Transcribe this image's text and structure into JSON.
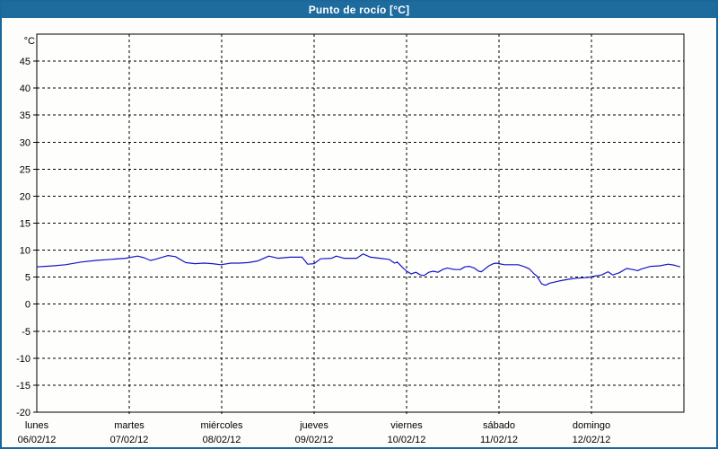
{
  "header": {
    "title": "Punto de rocío [°C]"
  },
  "colors": {
    "titlebar_bg": "#1e6b9e",
    "titlebar_text": "#ffffff",
    "window_border": "#1c679a",
    "line": "#1515c8",
    "grid": "#000000",
    "background": "#fdfdfb",
    "plot_background": "#fefefc"
  },
  "chart_data": {
    "type": "line",
    "title": "Punto de rocío [°C]",
    "ylabel": "°C",
    "ylim": [
      -20,
      50
    ],
    "xlim_days": [
      0,
      7
    ],
    "yticks": [
      45,
      40,
      35,
      30,
      25,
      20,
      15,
      10,
      5,
      0,
      -5,
      -10,
      -15,
      -20
    ],
    "grid": "dashed-both-axes",
    "legend": "none",
    "x_days": [
      {
        "name": "lunes",
        "date": "06/02/12"
      },
      {
        "name": "martes",
        "date": "07/02/12"
      },
      {
        "name": "miércoles",
        "date": "08/02/12"
      },
      {
        "name": "jueves",
        "date": "09/02/12"
      },
      {
        "name": "viernes",
        "date": "10/02/12"
      },
      {
        "name": "sábado",
        "date": "11/02/12"
      },
      {
        "name": "domingo",
        "date": "12/02/12"
      }
    ],
    "x_encoding": "t = days elapsed since lunes 06/02/12 00:00",
    "series": [
      {
        "name": "Punto de rocío",
        "color": "#1515c8",
        "points": [
          [
            0.0,
            6.9
          ],
          [
            0.09,
            7.0
          ],
          [
            0.18,
            7.1
          ],
          [
            0.31,
            7.3
          ],
          [
            0.48,
            7.8
          ],
          [
            0.64,
            8.1
          ],
          [
            0.8,
            8.3
          ],
          [
            0.96,
            8.5
          ],
          [
            1.09,
            8.9
          ],
          [
            1.16,
            8.6
          ],
          [
            1.23,
            8.1
          ],
          [
            1.28,
            8.3
          ],
          [
            1.42,
            9.0
          ],
          [
            1.5,
            8.8
          ],
          [
            1.61,
            7.7
          ],
          [
            1.71,
            7.5
          ],
          [
            1.81,
            7.6
          ],
          [
            1.9,
            7.5
          ],
          [
            1.99,
            7.3
          ],
          [
            2.1,
            7.6
          ],
          [
            2.19,
            7.6
          ],
          [
            2.29,
            7.7
          ],
          [
            2.39,
            8.0
          ],
          [
            2.51,
            8.9
          ],
          [
            2.61,
            8.5
          ],
          [
            2.74,
            8.7
          ],
          [
            2.87,
            8.7
          ],
          [
            2.93,
            7.4
          ],
          [
            3.0,
            7.5
          ],
          [
            3.07,
            8.4
          ],
          [
            3.19,
            8.5
          ],
          [
            3.24,
            8.9
          ],
          [
            3.32,
            8.5
          ],
          [
            3.46,
            8.5
          ],
          [
            3.53,
            9.3
          ],
          [
            3.61,
            8.7
          ],
          [
            3.71,
            8.5
          ],
          [
            3.81,
            8.3
          ],
          [
            3.87,
            7.6
          ],
          [
            3.9,
            7.8
          ],
          [
            3.95,
            6.9
          ],
          [
            4.0,
            6.1
          ],
          [
            4.02,
            5.9
          ],
          [
            4.05,
            5.6
          ],
          [
            4.1,
            5.9
          ],
          [
            4.15,
            5.4
          ],
          [
            4.19,
            5.3
          ],
          [
            4.24,
            5.9
          ],
          [
            4.29,
            6.1
          ],
          [
            4.34,
            5.9
          ],
          [
            4.39,
            6.4
          ],
          [
            4.44,
            6.7
          ],
          [
            4.49,
            6.5
          ],
          [
            4.53,
            6.4
          ],
          [
            4.58,
            6.4
          ],
          [
            4.63,
            6.9
          ],
          [
            4.68,
            7.0
          ],
          [
            4.73,
            6.7
          ],
          [
            4.78,
            6.1
          ],
          [
            4.81,
            6.0
          ],
          [
            4.84,
            6.4
          ],
          [
            4.89,
            7.1
          ],
          [
            4.94,
            7.5
          ],
          [
            4.97,
            7.6
          ],
          [
            5.0,
            7.5
          ],
          [
            5.06,
            7.3
          ],
          [
            5.14,
            7.3
          ],
          [
            5.21,
            7.3
          ],
          [
            5.28,
            6.9
          ],
          [
            5.33,
            6.5
          ],
          [
            5.38,
            5.6
          ],
          [
            5.41,
            5.2
          ],
          [
            5.46,
            3.8
          ],
          [
            5.5,
            3.5
          ],
          [
            5.55,
            3.9
          ],
          [
            5.65,
            4.3
          ],
          [
            5.75,
            4.6
          ],
          [
            5.84,
            4.8
          ],
          [
            5.93,
            4.9
          ],
          [
            5.98,
            5.0
          ],
          [
            6.04,
            5.2
          ],
          [
            6.11,
            5.4
          ],
          [
            6.18,
            6.0
          ],
          [
            6.23,
            5.4
          ],
          [
            6.3,
            5.8
          ],
          [
            6.38,
            6.6
          ],
          [
            6.45,
            6.4
          ],
          [
            6.5,
            6.2
          ],
          [
            6.54,
            6.5
          ],
          [
            6.64,
            7.0
          ],
          [
            6.74,
            7.1
          ],
          [
            6.83,
            7.4
          ],
          [
            6.9,
            7.2
          ],
          [
            6.96,
            6.9
          ]
        ]
      }
    ]
  }
}
